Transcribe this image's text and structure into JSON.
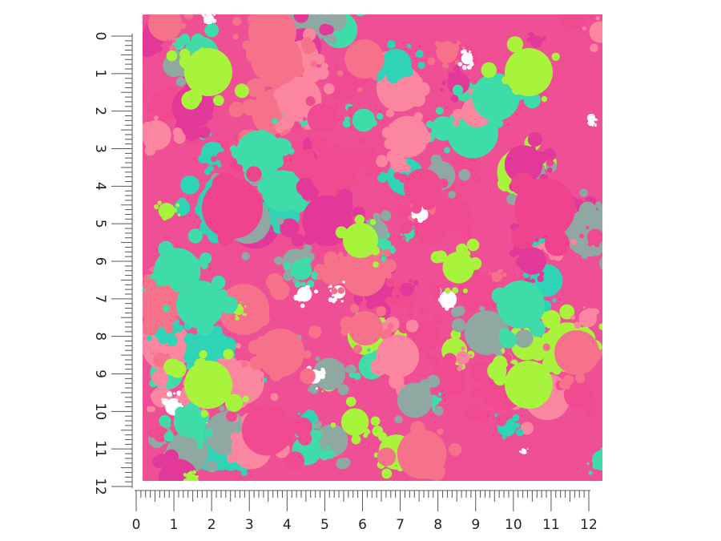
{
  "vertical_ruler": {
    "labels": [
      "0",
      "1",
      "2",
      "3",
      "4",
      "5",
      "6",
      "7",
      "8",
      "9",
      "10",
      "11",
      "12"
    ]
  },
  "horizontal_ruler": {
    "labels": [
      "0",
      "1",
      "2",
      "3",
      "4",
      "5",
      "6",
      "7",
      "8",
      "9",
      "10",
      "11",
      "12"
    ]
  }
}
